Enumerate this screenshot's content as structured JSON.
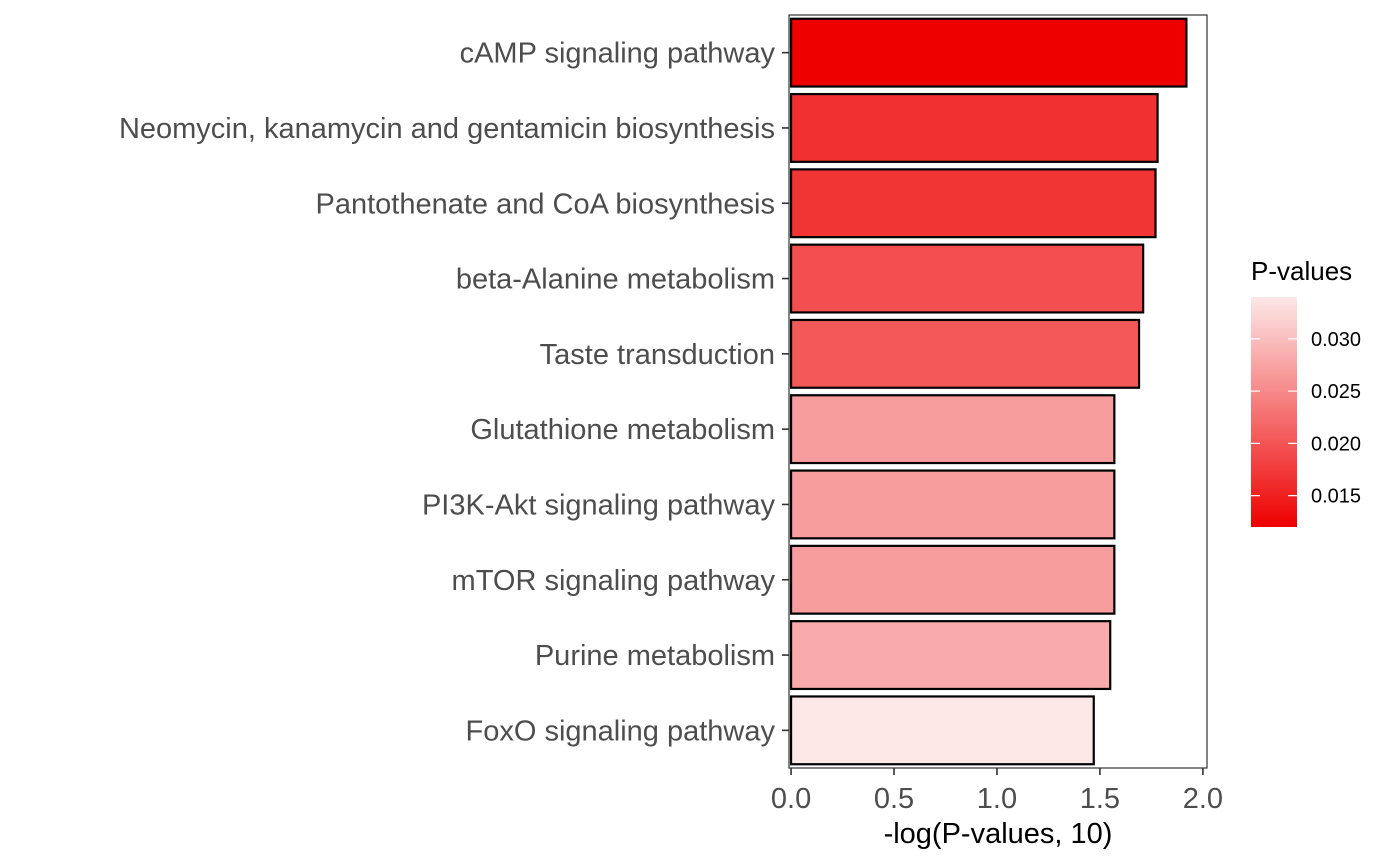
{
  "chart_data": {
    "type": "bar",
    "orientation": "horizontal",
    "categories": [
      "cAMP signaling pathway",
      "Neomycin, kanamycin and gentamicin biosynthesis",
      "Pantothenate and CoA biosynthesis",
      "beta-Alanine metabolism",
      "Taste transduction",
      "Glutathione metabolism",
      "PI3K-Akt signaling pathway",
      "mTOR signaling pathway",
      "Purine metabolism",
      "FoxO signaling pathway"
    ],
    "values": [
      1.92,
      1.78,
      1.77,
      1.71,
      1.69,
      1.57,
      1.57,
      1.57,
      1.55,
      1.47
    ],
    "p_values": [
      0.012,
      0.0166,
      0.017,
      0.0195,
      0.0204,
      0.0269,
      0.0269,
      0.0269,
      0.0282,
      0.0339
    ],
    "xlabel": "-log(P-values, 10)",
    "xlim": [
      -0.01,
      2.02
    ],
    "xticks": [
      "0.0",
      "0.5",
      "1.0",
      "1.5",
      "2.0"
    ],
    "xtick_values": [
      0,
      0.5,
      1.0,
      1.5,
      2.0
    ],
    "legend": {
      "title": "P-values",
      "ticks": [
        "0.015",
        "0.020",
        "0.025",
        "0.030"
      ],
      "tick_values": [
        0.015,
        0.02,
        0.025,
        0.03
      ],
      "range": [
        0.012,
        0.034
      ],
      "color_low": "#EE0000",
      "color_high": "#FDE8E8",
      "placement": "right"
    },
    "grid": false,
    "bar_outline": "#000000"
  }
}
